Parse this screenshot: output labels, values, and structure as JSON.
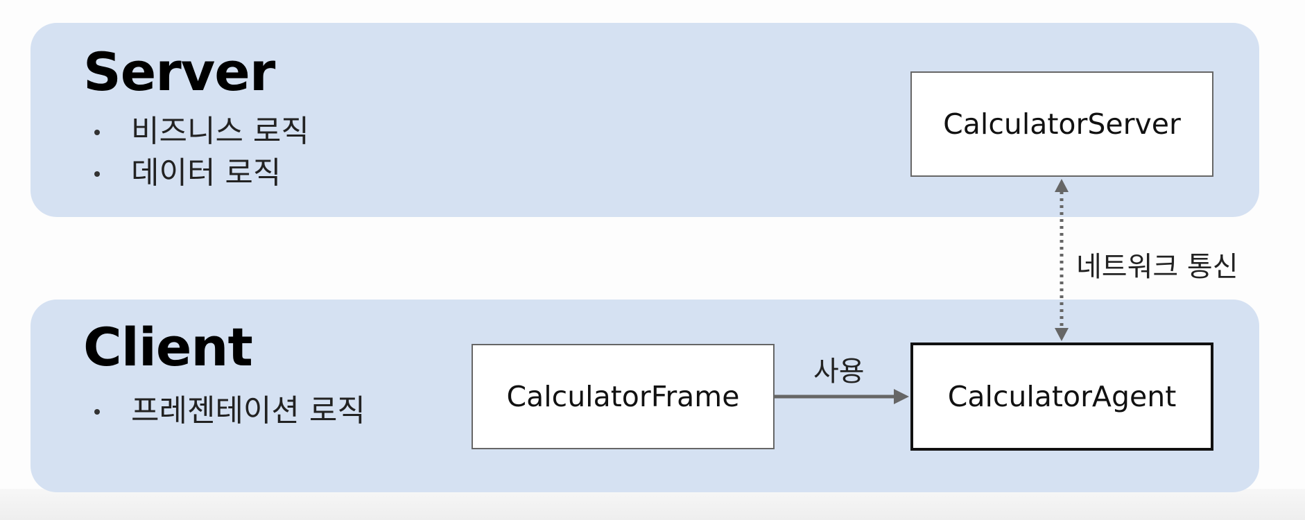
{
  "server": {
    "title": "Server",
    "bullets": [
      "비즈니스 로직",
      "데이터 로직"
    ],
    "component": "CalculatorServer"
  },
  "client": {
    "title": "Client",
    "bullets": [
      "프레젠테이션 로직"
    ],
    "components": {
      "frame": "CalculatorFrame",
      "agent": "CalculatorAgent"
    }
  },
  "edges": {
    "network": "네트워크 통신",
    "uses": "사용"
  },
  "colors": {
    "panel": "#d5e1f2",
    "arrow": "#666666"
  }
}
